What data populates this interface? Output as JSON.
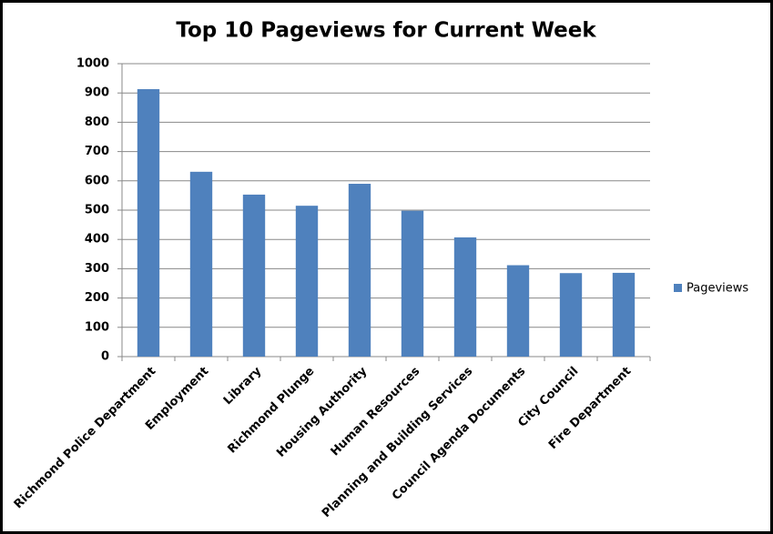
{
  "chart_data": {
    "type": "bar",
    "title": "Top 10 Pageviews for Current Week",
    "categories": [
      "Richmond Police Department",
      "Employment",
      "Library",
      "Richmond Plunge",
      "Housing Authority",
      "Human Resources",
      "Planning and Building Services",
      "Council Agenda Documents",
      "City Council",
      "Fire Department"
    ],
    "series": [
      {
        "name": "Pageviews",
        "color": "#4f81bd",
        "values": [
          913,
          631,
          553,
          515,
          590,
          498,
          407,
          312,
          285,
          286
        ]
      }
    ],
    "ylim": [
      0,
      1000
    ],
    "yticks": [
      0,
      100,
      200,
      300,
      400,
      500,
      600,
      700,
      800,
      900,
      1000
    ],
    "grid": true,
    "legend": "right"
  }
}
